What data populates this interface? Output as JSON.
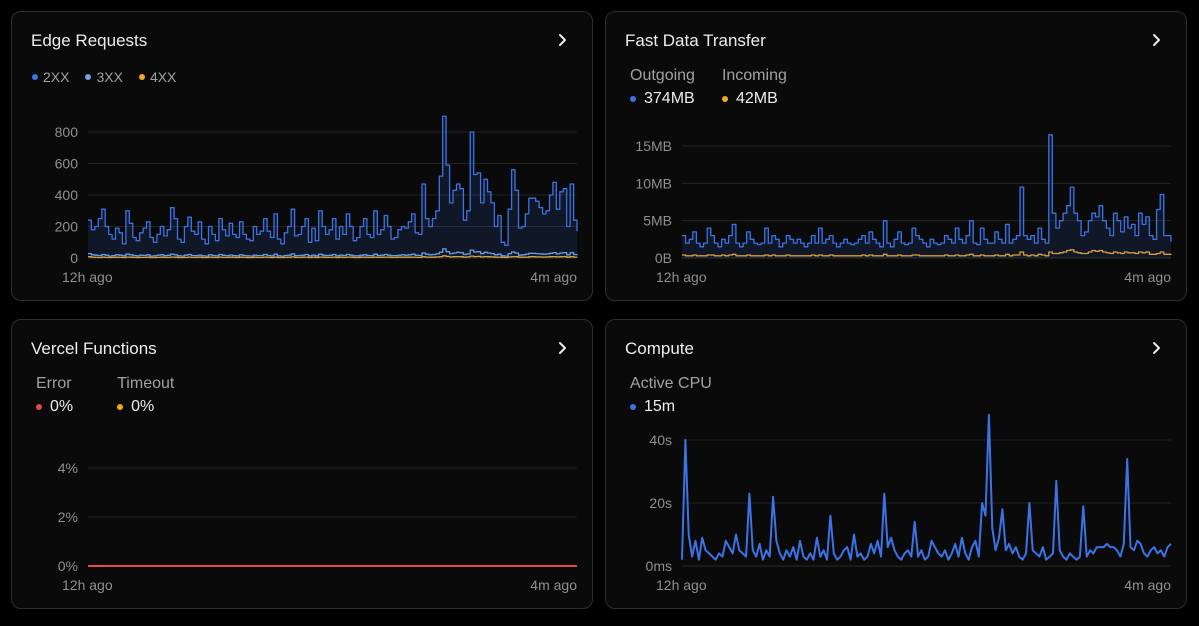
{
  "colors": {
    "2xx": "#3b73e6",
    "3xx": "#6fa7e8",
    "4xx": "#f5a623",
    "error": "#e5484d",
    "grid": "#232323",
    "axis": "#8f8f8f"
  },
  "edge": {
    "title": "Edge Requests",
    "legend": [
      "2XX",
      "3XX",
      "4XX"
    ],
    "x_start": "12h ago",
    "x_end": "4m ago"
  },
  "fdt": {
    "title": "Fast Data Transfer",
    "outgoing_label": "Outgoing",
    "outgoing_value": "374MB",
    "incoming_label": "Incoming",
    "incoming_value": "42MB",
    "x_start": "12h ago",
    "x_end": "4m ago"
  },
  "fn": {
    "title": "Vercel Functions",
    "error_label": "Error",
    "error_value": "0%",
    "timeout_label": "Timeout",
    "timeout_value": "0%",
    "x_start": "12h ago",
    "x_end": "4m ago"
  },
  "compute": {
    "title": "Compute",
    "cpu_label": "Active CPU",
    "cpu_value": "15m",
    "x_start": "12h ago",
    "x_end": "4m ago"
  },
  "chart_data": [
    {
      "type": "area",
      "title": "Edge Requests",
      "yticks": [
        "0",
        "200",
        "400",
        "600",
        "800"
      ],
      "ylim": [
        0,
        800
      ],
      "step": true,
      "series": [
        {
          "name": "2XX",
          "values": [
            240,
            180,
            200,
            250,
            310,
            200,
            150,
            120,
            190,
            160,
            90,
            300,
            220,
            130,
            110,
            160,
            190,
            230,
            130,
            100,
            150,
            200,
            140,
            180,
            320,
            250,
            120,
            100,
            200,
            260,
            170,
            150,
            230,
            120,
            90,
            200,
            150,
            110,
            250,
            180,
            140,
            220,
            150,
            130,
            230,
            150,
            120,
            110,
            200,
            150,
            170,
            250,
            170,
            130,
            280,
            120,
            90,
            160,
            200,
            310,
            140,
            150,
            200,
            250,
            100,
            190,
            110,
            300,
            200,
            150,
            180,
            250,
            120,
            200,
            150,
            280,
            200,
            110,
            130,
            200,
            250,
            150,
            130,
            300,
            150,
            180,
            270,
            200,
            120,
            130,
            180,
            200,
            190,
            230,
            280,
            160,
            150,
            470,
            250,
            200,
            250,
            300,
            520,
            900,
            590,
            350,
            430,
            470,
            440,
            240,
            300,
            800,
            530,
            540,
            350,
            500,
            420,
            350,
            200,
            270,
            100,
            80,
            310,
            560,
            430,
            190,
            200,
            280,
            380,
            380,
            360,
            320,
            280,
            300,
            400,
            480,
            310,
            420,
            440,
            200,
            470,
            240,
            170
          ]
        },
        {
          "name": "3XX",
          "values": [
            28,
            20,
            18,
            15,
            22,
            18,
            12,
            15,
            20,
            18,
            14,
            24,
            20,
            16,
            14,
            18,
            16,
            20,
            12,
            14,
            18,
            20,
            15,
            17,
            24,
            20,
            14,
            13,
            18,
            22,
            16,
            15,
            18,
            14,
            12,
            20,
            16,
            14,
            22,
            17,
            15,
            19,
            15,
            14,
            20,
            16,
            14,
            13,
            18,
            16,
            16,
            22,
            16,
            14,
            24,
            14,
            12,
            16,
            18,
            26,
            15,
            16,
            18,
            22,
            14,
            18,
            14,
            24,
            18,
            16,
            17,
            22,
            14,
            18,
            16,
            22,
            18,
            14,
            14,
            18,
            20,
            16,
            15,
            24,
            16,
            18,
            22,
            18,
            15,
            15,
            18,
            20,
            18,
            20,
            24,
            17,
            16,
            32,
            24,
            20,
            22,
            26,
            36,
            58,
            40,
            28,
            32,
            36,
            34,
            22,
            26,
            50,
            38,
            40,
            28,
            36,
            32,
            28,
            20,
            24,
            14,
            12,
            28,
            38,
            32,
            18,
            20,
            24,
            30,
            30,
            28,
            26,
            24,
            26,
            30,
            34,
            26,
            32,
            34,
            20,
            34,
            22,
            18
          ]
        },
        {
          "name": "4XX",
          "values": [
            8,
            5,
            4,
            3,
            6,
            4,
            3,
            4,
            5,
            4,
            3,
            6,
            5,
            4,
            3,
            4,
            4,
            5,
            3,
            3,
            4,
            5,
            4,
            4,
            6,
            5,
            3,
            3,
            4,
            6,
            4,
            4,
            5,
            3,
            3,
            5,
            4,
            3,
            6,
            4,
            4,
            5,
            4,
            3,
            5,
            4,
            3,
            3,
            5,
            4,
            4,
            6,
            4,
            3,
            6,
            3,
            3,
            4,
            5,
            7,
            4,
            4,
            5,
            6,
            3,
            5,
            3,
            6,
            5,
            4,
            4,
            6,
            3,
            5,
            4,
            6,
            5,
            3,
            3,
            5,
            5,
            4,
            4,
            6,
            4,
            5,
            6,
            5,
            4,
            4,
            5,
            5,
            5,
            5,
            6,
            4,
            4,
            8,
            6,
            5,
            5,
            7,
            9,
            14,
            10,
            7,
            8,
            9,
            8,
            6,
            7,
            12,
            9,
            10,
            7,
            9,
            8,
            7,
            5,
            6,
            4,
            3,
            7,
            9,
            8,
            5,
            5,
            6,
            8,
            8,
            7,
            7,
            6,
            7,
            8,
            9,
            7,
            8,
            9,
            5,
            9,
            6,
            5
          ]
        }
      ]
    },
    {
      "type": "area",
      "title": "Fast Data Transfer",
      "yticks": [
        "0B",
        "5MB",
        "10MB",
        "15MB"
      ],
      "ylim": [
        0,
        15
      ],
      "step": true,
      "series": [
        {
          "name": "Outgoing",
          "values": [
            3,
            2,
            2.5,
            3.5,
            2,
            1.5,
            2,
            4,
            3,
            2,
            1.5,
            2.5,
            2,
            3,
            4.5,
            2,
            1.5,
            2,
            3.5,
            2.5,
            2,
            1.8,
            2,
            4,
            2,
            3,
            2.5,
            1.5,
            2,
            3,
            2.5,
            2,
            2.5,
            2,
            1.5,
            2,
            3,
            2,
            4,
            2,
            2.5,
            3,
            2,
            1.5,
            2,
            2.5,
            2,
            1.8,
            2,
            2.5,
            3,
            2,
            3.5,
            2.5,
            2,
            1.5,
            5,
            2,
            1.5,
            2.5,
            3.5,
            2,
            1.8,
            2,
            4,
            3,
            2.5,
            2,
            1.5,
            2.5,
            2,
            1.8,
            2,
            3,
            2.5,
            2,
            4,
            2.5,
            2,
            3,
            5,
            2,
            1.8,
            4,
            2.5,
            2,
            2,
            3.5,
            2.5,
            2,
            4.5,
            2,
            2.5,
            3,
            9.5,
            3,
            2.5,
            3,
            2,
            4,
            2.5,
            2,
            16.5,
            6,
            4,
            5,
            6,
            7,
            9.5,
            6,
            5,
            3,
            3.5,
            5,
            6,
            5.5,
            7,
            5,
            4,
            3,
            6,
            5,
            3.5,
            5.5,
            4,
            4.5,
            3,
            6,
            4.5,
            5.5,
            3,
            2.5,
            6.5,
            8.5,
            3,
            3,
            2.2
          ]
        },
        {
          "name": "Incoming",
          "values": [
            0.4,
            0.3,
            0.3,
            0.4,
            0.3,
            0.3,
            0.3,
            0.4,
            0.4,
            0.3,
            0.3,
            0.4,
            0.3,
            0.4,
            0.5,
            0.3,
            0.3,
            0.3,
            0.4,
            0.3,
            0.3,
            0.3,
            0.3,
            0.4,
            0.3,
            0.4,
            0.3,
            0.3,
            0.3,
            0.4,
            0.3,
            0.3,
            0.3,
            0.3,
            0.3,
            0.3,
            0.4,
            0.3,
            0.4,
            0.3,
            0.3,
            0.4,
            0.3,
            0.3,
            0.3,
            0.3,
            0.3,
            0.3,
            0.3,
            0.3,
            0.4,
            0.3,
            0.4,
            0.3,
            0.3,
            0.3,
            0.5,
            0.3,
            0.3,
            0.3,
            0.4,
            0.3,
            0.3,
            0.3,
            0.4,
            0.4,
            0.3,
            0.3,
            0.3,
            0.3,
            0.3,
            0.3,
            0.3,
            0.4,
            0.3,
            0.3,
            0.4,
            0.3,
            0.3,
            0.4,
            0.5,
            0.3,
            0.3,
            0.4,
            0.3,
            0.3,
            0.3,
            0.4,
            0.3,
            0.3,
            0.5,
            0.3,
            0.4,
            0.4,
            0.8,
            0.4,
            0.3,
            0.4,
            0.3,
            0.5,
            0.4,
            0.3,
            0.8,
            0.6,
            0.6,
            0.7,
            0.8,
            1.0,
            1.1,
            0.8,
            0.7,
            0.6,
            0.6,
            0.8,
            1.0,
            0.9,
            1.0,
            0.8,
            0.7,
            0.6,
            0.8,
            0.7,
            0.6,
            0.8,
            0.7,
            0.7,
            0.6,
            0.8,
            0.7,
            0.8,
            0.5,
            0.5,
            0.6,
            0.8,
            0.5,
            0.5,
            0.4
          ]
        }
      ]
    },
    {
      "type": "line",
      "title": "Vercel Functions",
      "yticks": [
        "0%",
        "2%",
        "4%"
      ],
      "ylim": [
        0,
        4
      ],
      "series": [
        {
          "name": "Error",
          "values": [
            0,
            0
          ]
        },
        {
          "name": "Timeout",
          "values": [
            0,
            0
          ]
        }
      ]
    },
    {
      "type": "line",
      "title": "Compute",
      "yticks": [
        "0ms",
        "20s",
        "40s"
      ],
      "ylim": [
        0,
        40
      ],
      "series": [
        {
          "name": "Active CPU",
          "values": [
            2,
            40,
            10,
            3,
            8,
            2,
            9,
            5,
            4,
            3,
            2,
            4,
            3,
            8,
            6,
            4,
            10,
            5,
            4,
            3,
            23,
            5,
            3,
            7,
            2,
            5,
            3,
            22,
            8,
            4,
            2,
            5,
            3,
            6,
            2,
            8,
            3,
            2,
            4,
            2,
            9,
            3,
            5,
            2,
            16,
            4,
            2,
            3,
            5,
            6,
            2,
            10,
            3,
            4,
            2,
            3,
            7,
            4,
            8,
            3,
            23,
            6,
            9,
            5,
            3,
            2,
            4,
            5,
            3,
            14,
            3,
            5,
            2,
            3,
            8,
            6,
            4,
            3,
            5,
            2,
            4,
            7,
            3,
            9,
            4,
            2,
            6,
            8,
            3,
            20,
            16,
            52,
            12,
            5,
            9,
            18,
            5,
            7,
            4,
            6,
            3,
            2,
            4,
            20,
            5,
            4,
            3,
            6,
            2,
            3,
            4,
            27,
            5,
            3,
            2,
            4,
            3,
            2,
            3,
            19,
            3,
            5,
            4,
            6,
            6,
            6,
            7,
            6,
            6,
            5,
            3,
            7,
            34,
            6,
            5,
            8,
            7,
            4,
            3,
            5,
            6,
            4,
            5,
            3,
            6,
            7
          ]
        }
      ]
    }
  ]
}
